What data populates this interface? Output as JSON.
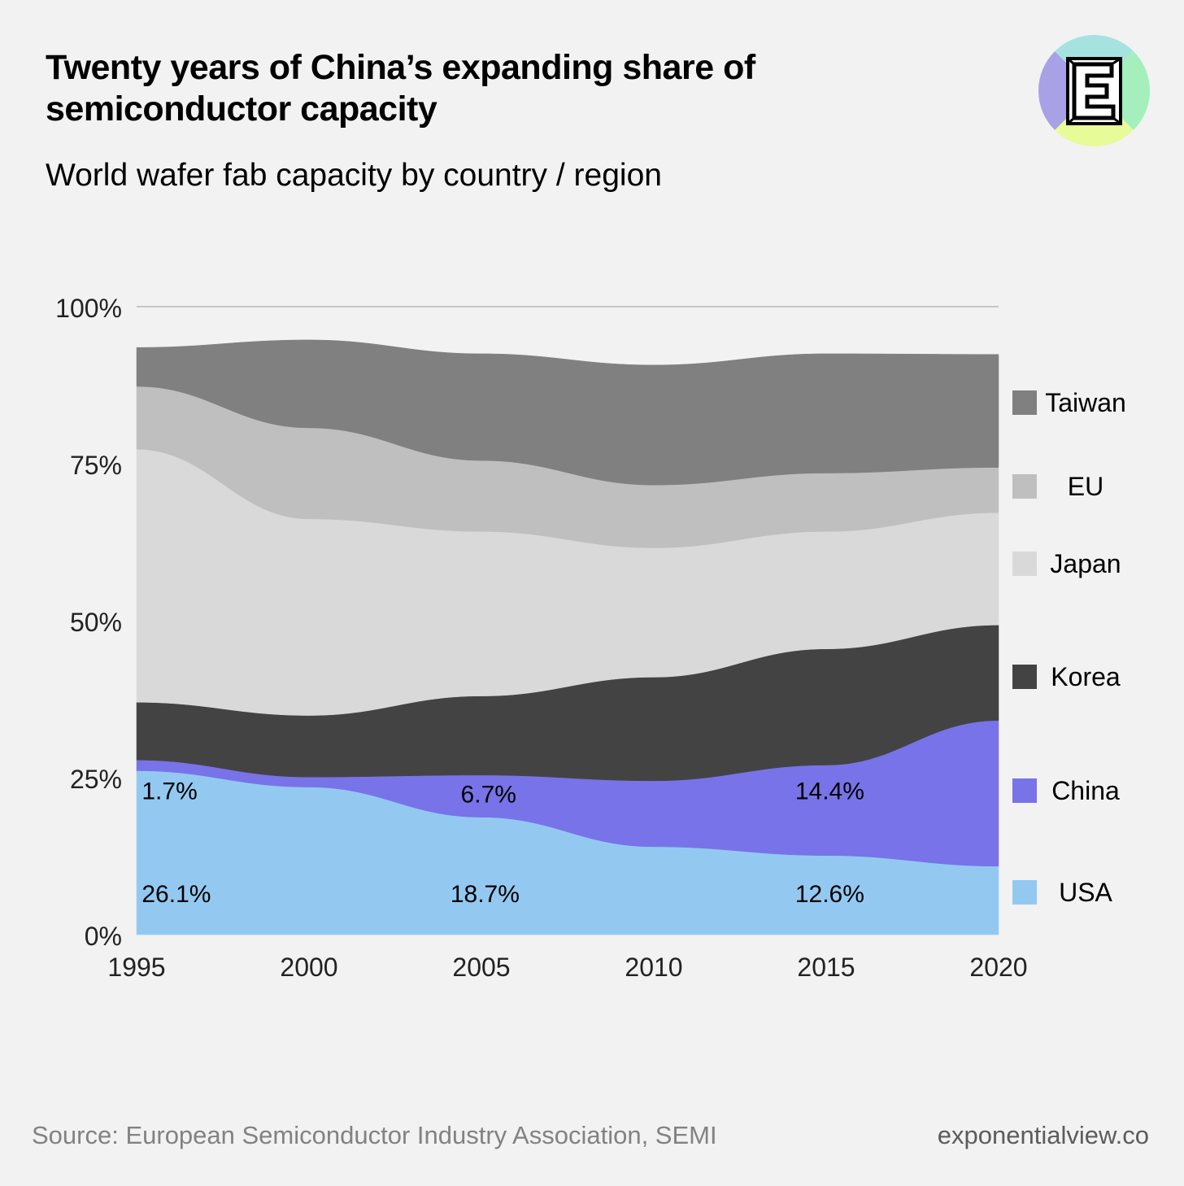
{
  "header": {
    "title_line1": "Twenty years of China’s expanding share of",
    "title_line2": "semiconductor capacity",
    "subtitle": "World wafer fab capacity by country / region"
  },
  "footer": {
    "source": "Source: European Semiconductor Industry Association, SEMI",
    "site": "exponentialview.co"
  },
  "logo": {
    "letter": "E",
    "colors": [
      "#a6e2e0",
      "#a4efbb",
      "#e8fb99",
      "#a9a1e6"
    ]
  },
  "chart_data": {
    "type": "area",
    "stacked": true,
    "x": [
      "1995",
      "2000",
      "2005",
      "2010",
      "2015",
      "2020"
    ],
    "x_numeric": [
      1995,
      2000,
      2005,
      2010,
      2015,
      2020
    ],
    "ylim": [
      0,
      100
    ],
    "y_ticks": [
      "0%",
      "25%",
      "50%",
      "75%",
      "100%"
    ],
    "y_tick_values": [
      0,
      25,
      50,
      75,
      100
    ],
    "legend_position": "right",
    "series": [
      {
        "name": "USA",
        "color": "#93c9f1",
        "values": [
          26.1,
          23.5,
          18.7,
          14.0,
          12.6,
          10.9
        ]
      },
      {
        "name": "China",
        "color": "#7873e8",
        "values": [
          1.7,
          1.6,
          6.7,
          10.5,
          14.4,
          23.2
        ]
      },
      {
        "name": "Korea",
        "color": "#434343",
        "values": [
          9.2,
          9.8,
          12.6,
          16.5,
          18.5,
          15.2
        ]
      },
      {
        "name": "Japan",
        "color": "#d9d9d9",
        "values": [
          40.3,
          31.3,
          26.2,
          20.6,
          18.7,
          17.9
        ]
      },
      {
        "name": "EU",
        "color": "#bfbfbf",
        "values": [
          10.0,
          14.5,
          11.3,
          10.0,
          9.3,
          7.2
        ]
      },
      {
        "name": "Taiwan",
        "color": "#808080",
        "values": [
          6.2,
          14.0,
          17.0,
          19.1,
          19.0,
          18.0
        ]
      }
    ],
    "annotations": [
      {
        "text": "26.1%",
        "x": 1995.15,
        "y": 6.6
      },
      {
        "text": "18.7%",
        "x": 2004.1,
        "y": 6.6
      },
      {
        "text": "12.6%",
        "x": 2014.1,
        "y": 6.6
      },
      {
        "text": "1.7%",
        "x": 1995.15,
        "y": 23.0
      },
      {
        "text": "6.7%",
        "x": 2004.4,
        "y": 22.5
      },
      {
        "text": "14.4%",
        "x": 2014.1,
        "y": 23.0
      }
    ]
  }
}
